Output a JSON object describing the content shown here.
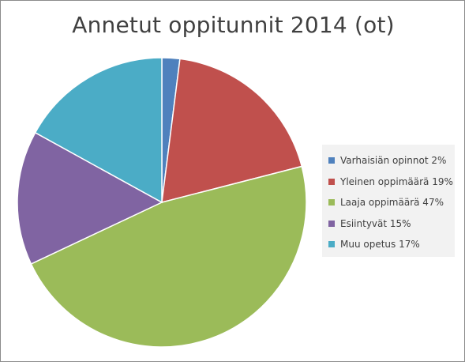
{
  "chart_data": {
    "type": "pie",
    "title": "Annetut oppitunnit 2014 (ot)",
    "legend_position": "right",
    "categories": [
      "Varhaisiän opinnot",
      "Yleinen oppimäärä",
      "Laaja oppimäärä",
      "Esiintyvät",
      "Muu opetus"
    ],
    "values": [
      2,
      19,
      47,
      15,
      17
    ],
    "legend_labels": [
      "Varhaisiän opinnot 2%",
      "Yleinen oppimäärä 19%",
      "Laaja oppimäärä 47%",
      "Esiintyvät 15%",
      "Muu opetus 17%"
    ],
    "colors": [
      "#4f81bd",
      "#c0504d",
      "#9bbb59",
      "#8064a2",
      "#4bacc6"
    ]
  }
}
